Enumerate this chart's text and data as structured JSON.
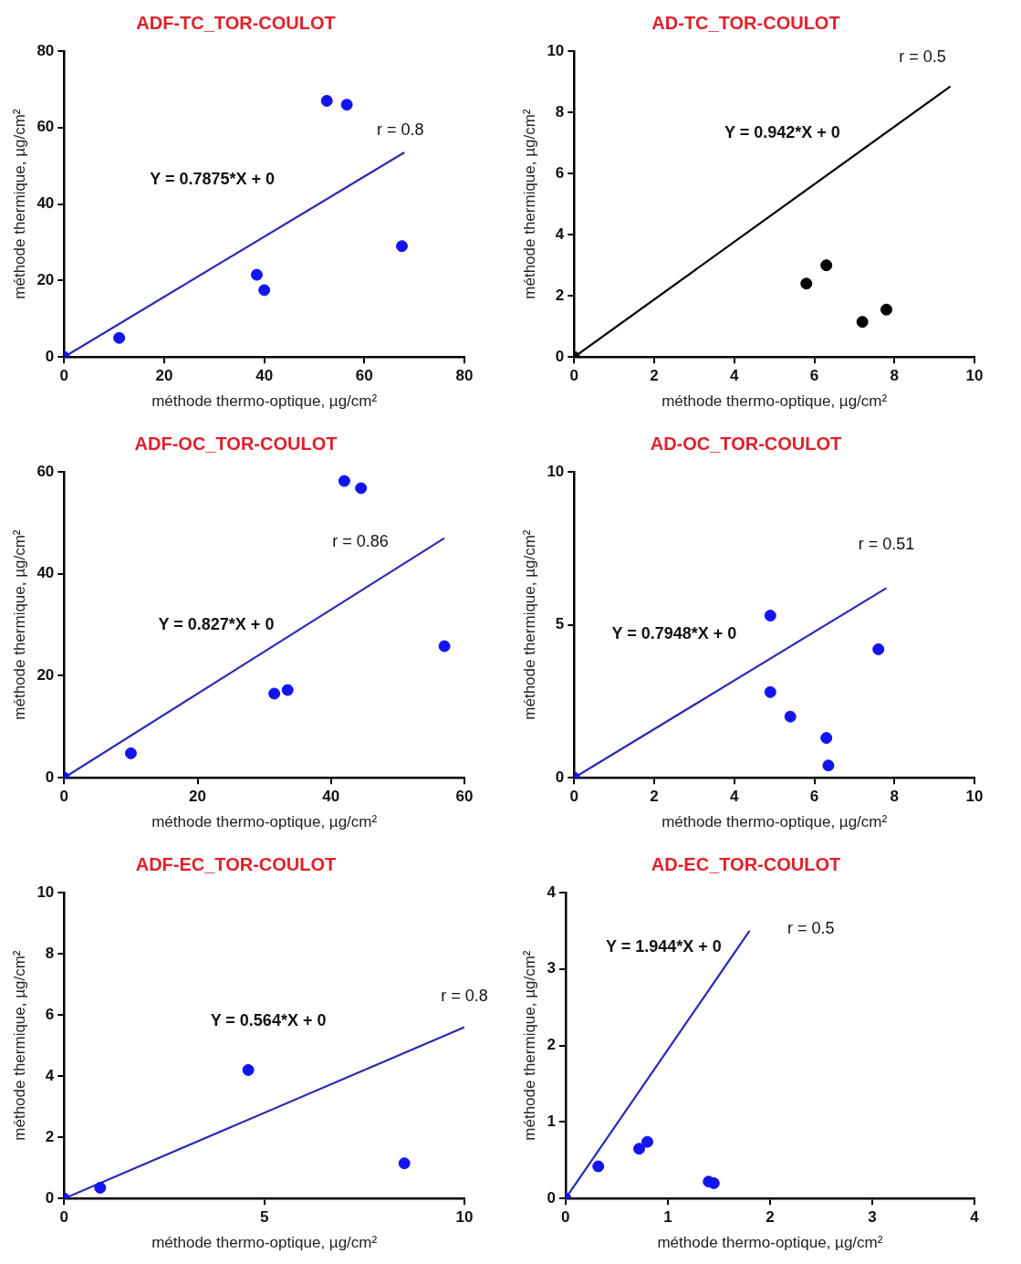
{
  "chart_data": [
    {
      "type": "scatter",
      "title": "ADF-TC_TOR-COULOT",
      "xlabel": "méthode thermo-optique, µg/cm²",
      "ylabel": "méthode thermique, µg/cm²",
      "xlim": [
        0,
        80
      ],
      "ylim": [
        0,
        80
      ],
      "xticks": [
        0,
        20,
        40,
        60,
        80
      ],
      "yticks": [
        0,
        20,
        40,
        60,
        80
      ],
      "annotations": [
        "Y = 0.7875*X + 0",
        "r = 0.8"
      ],
      "series": [
        {
          "type": "scatter",
          "marker": "circle",
          "color": "#1414f0",
          "x": [
            0,
            11,
            38.5,
            40,
            52.5,
            56.5,
            67.5
          ],
          "values": [
            0,
            5,
            21.5,
            17.5,
            67,
            66,
            29
          ]
        },
        {
          "type": "line",
          "marker": "none",
          "color": "#2a2ab4",
          "x": [
            0,
            68
          ],
          "values": [
            0,
            53.5
          ]
        }
      ]
    },
    {
      "type": "scatter",
      "title": "AD-TC_TOR-COULOT",
      "xlabel": "méthode thermo-optique, µg/cm²",
      "ylabel": "méthode thermique, µg/cm²",
      "xlim": [
        0,
        10
      ],
      "ylim": [
        0,
        10
      ],
      "xticks": [
        0,
        2,
        4,
        6,
        8,
        10
      ],
      "yticks": [
        0,
        2,
        4,
        6,
        8,
        10
      ],
      "annotations": [
        "Y = 0.942*X + 0",
        "r = 0.5"
      ],
      "series": [
        {
          "type": "scatter",
          "marker": "circle",
          "color": "#000000",
          "x": [
            0,
            5.8,
            6.3,
            7.2,
            7.8
          ],
          "values": [
            0,
            2.4,
            3.0,
            1.15,
            1.55
          ]
        },
        {
          "type": "line",
          "marker": "none",
          "color": "#000000",
          "x": [
            0,
            9.4
          ],
          "values": [
            0,
            8.85
          ]
        }
      ]
    },
    {
      "type": "scatter",
      "title": "ADF-OC_TOR-COULOT",
      "xlabel": "méthode thermo-optique, µg/cm²",
      "ylabel": "méthode thermique, µg/cm²",
      "xlim": [
        0,
        60
      ],
      "ylim": [
        0,
        60
      ],
      "xticks": [
        0,
        20,
        40,
        60
      ],
      "yticks": [
        0,
        20,
        40,
        60
      ],
      "annotations": [
        "Y = 0.827*X + 0",
        "r = 0.86"
      ],
      "series": [
        {
          "type": "scatter",
          "marker": "circle",
          "color": "#1414f0",
          "x": [
            0,
            10,
            31.5,
            33.5,
            42,
            44.5,
            57
          ],
          "values": [
            0,
            4.8,
            16.5,
            17.2,
            58.2,
            56.8,
            25.8
          ]
        },
        {
          "type": "line",
          "marker": "none",
          "color": "#2a2ab4",
          "x": [
            0,
            57
          ],
          "values": [
            0,
            47
          ]
        }
      ]
    },
    {
      "type": "scatter",
      "title": "AD-OC_TOR-COULOT",
      "xlabel": "méthode thermo-optique, µg/cm²",
      "ylabel": "méthode thermique, µg/cm²",
      "xlim": [
        0,
        10
      ],
      "ylim": [
        0,
        10
      ],
      "xticks": [
        0,
        2,
        4,
        6,
        8,
        10
      ],
      "yticks": [
        0,
        5,
        10
      ],
      "annotations": [
        "Y = 0.7948*X + 0",
        "r = 0.51"
      ],
      "series": [
        {
          "type": "scatter",
          "marker": "circle",
          "color": "#1414f0",
          "x": [
            0,
            4.9,
            4.9,
            5.4,
            6.3,
            6.35,
            7.6
          ],
          "values": [
            0,
            5.3,
            2.8,
            2.0,
            1.3,
            0.4,
            4.2
          ]
        },
        {
          "type": "line",
          "marker": "none",
          "color": "#2a2ab4",
          "x": [
            0,
            7.8
          ],
          "values": [
            0,
            6.2
          ]
        }
      ]
    },
    {
      "type": "scatter",
      "title": "ADF-EC_TOR-COULOT",
      "xlabel": "méthode thermo-optique, µg/cm²",
      "ylabel": "méthode thermique, µg/cm²",
      "xlim": [
        0,
        10
      ],
      "ylim": [
        0,
        10
      ],
      "xticks": [
        0,
        5,
        10
      ],
      "yticks": [
        0,
        2,
        4,
        6,
        8,
        10
      ],
      "annotations": [
        "Y = 0.564*X + 0",
        "r = 0.8"
      ],
      "series": [
        {
          "type": "scatter",
          "marker": "circle",
          "color": "#1414f0",
          "x": [
            0,
            0.9,
            4.6,
            8.5
          ],
          "values": [
            0,
            0.35,
            4.2,
            1.15
          ]
        },
        {
          "type": "line",
          "marker": "none",
          "color": "#2a2ab4",
          "x": [
            0,
            10
          ],
          "values": [
            0,
            5.6
          ]
        }
      ]
    },
    {
      "type": "scatter",
      "title": "AD-EC_TOR-COULOT",
      "xlabel": "méthode thermo-optique, µg/cm²",
      "ylabel": "méthode thermique, µg/cm²",
      "xlim": [
        0,
        4
      ],
      "ylim": [
        0,
        4
      ],
      "xticks": [
        0,
        1,
        2,
        3,
        4
      ],
      "yticks": [
        0,
        1,
        2,
        3,
        4
      ],
      "annotations": [
        "Y = 1.944*X + 0",
        "r = 0.5"
      ],
      "series": [
        {
          "type": "scatter",
          "marker": "circle",
          "color": "#1414f0",
          "x": [
            0,
            0.32,
            0.72,
            0.8,
            1.4,
            1.45
          ],
          "values": [
            0,
            0.42,
            0.65,
            0.74,
            0.22,
            0.2
          ]
        },
        {
          "type": "line",
          "marker": "none",
          "color": "#2a2ab4",
          "x": [
            0,
            1.8
          ],
          "values": [
            0,
            3.5
          ]
        }
      ]
    }
  ]
}
